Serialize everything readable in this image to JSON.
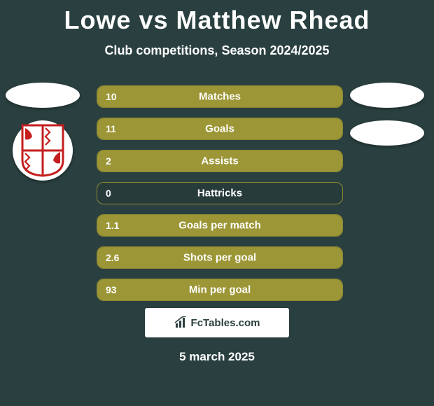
{
  "title": "Lowe vs Matthew Rhead",
  "subtitle": "Club competitions, Season 2024/2025",
  "bars": [
    {
      "value": "10",
      "label": "Matches",
      "fill_pct": 100
    },
    {
      "value": "11",
      "label": "Goals",
      "fill_pct": 100
    },
    {
      "value": "2",
      "label": "Assists",
      "fill_pct": 100
    },
    {
      "value": "0",
      "label": "Hattricks",
      "fill_pct": 0
    },
    {
      "value": "1.1",
      "label": "Goals per match",
      "fill_pct": 100
    },
    {
      "value": "2.6",
      "label": "Shots per goal",
      "fill_pct": 100
    },
    {
      "value": "93",
      "label": "Min per goal",
      "fill_pct": 100
    }
  ],
  "footer": {
    "site": "FcTables.com"
  },
  "date": "5 march 2025",
  "colors": {
    "bg": "#2a3f3f",
    "bar_fill": "#9c9636",
    "bar_border": "#8d8833",
    "text": "#ffffff"
  }
}
